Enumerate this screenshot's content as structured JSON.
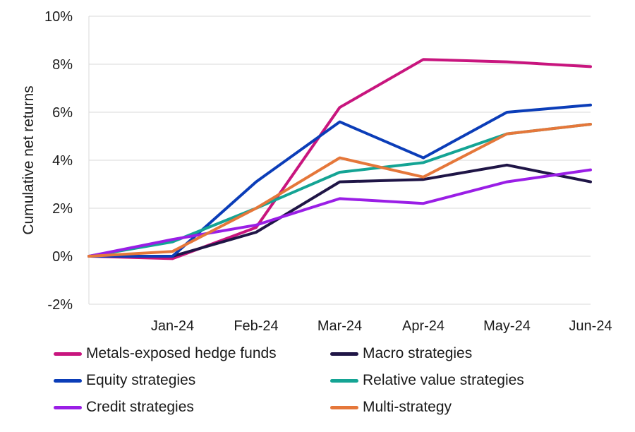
{
  "chart_data": {
    "type": "line",
    "ylabel": "Cumulative net returns",
    "xlabel": "",
    "x": [
      "",
      "Jan-24",
      "Feb-24",
      "Mar-24",
      "Apr-24",
      "May-24",
      "Jun-24"
    ],
    "ylim": [
      -2,
      10
    ],
    "yticks": [
      -2,
      0,
      2,
      4,
      6,
      8,
      10
    ],
    "ytick_labels": [
      "-2%",
      "0%",
      "2%",
      "4%",
      "6%",
      "8%",
      "10%"
    ],
    "grid": true,
    "legend_position": "bottom",
    "series": [
      {
        "name": "Metals-exposed hedge funds",
        "color": "#c8157e",
        "values": [
          0,
          -0.1,
          1.2,
          6.2,
          8.2,
          8.1,
          7.9
        ]
      },
      {
        "name": "Macro strategies",
        "color": "#1f1546",
        "values": [
          0,
          0.0,
          1.0,
          3.1,
          3.2,
          3.8,
          3.1
        ]
      },
      {
        "name": "Equity strategies",
        "color": "#0b3db8",
        "values": [
          0,
          0.0,
          3.1,
          5.6,
          4.1,
          6.0,
          6.3
        ]
      },
      {
        "name": "Relative value strategies",
        "color": "#14a494",
        "values": [
          0,
          0.6,
          2.0,
          3.5,
          3.9,
          5.1,
          5.5
        ]
      },
      {
        "name": "Credit strategies",
        "color": "#9a1ee6",
        "values": [
          0,
          0.7,
          1.3,
          2.4,
          2.2,
          3.1,
          3.6
        ]
      },
      {
        "name": "Multi-strategy",
        "color": "#e5773a",
        "values": [
          0,
          0.2,
          2.0,
          4.1,
          3.3,
          5.1,
          5.5
        ]
      }
    ]
  }
}
